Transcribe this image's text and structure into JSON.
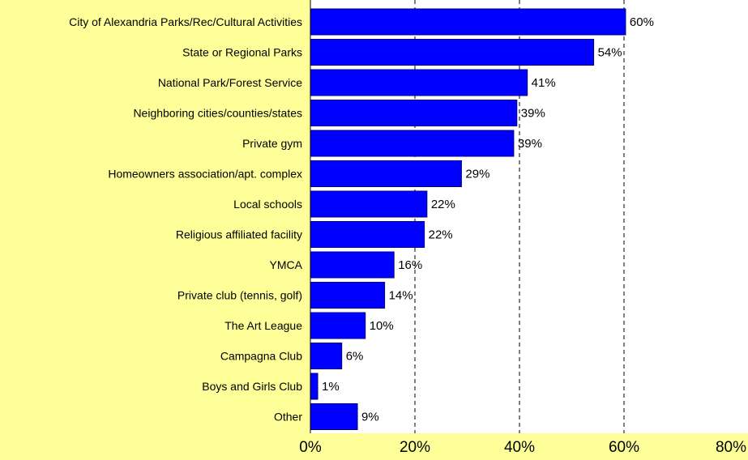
{
  "colors": {
    "page_background": "#FFFF99",
    "plot_background": "#FFFFFF",
    "bar_fill": "#0000FF",
    "bar_stroke": "#000080",
    "gridline": "#000000"
  },
  "chart_data": {
    "type": "bar",
    "orientation": "horizontal",
    "title": "",
    "xlabel": "",
    "ylabel": "",
    "xlim": [
      0,
      80
    ],
    "x_ticks": [
      0,
      20,
      40,
      60,
      80
    ],
    "x_tick_labels": [
      "0%",
      "20%",
      "40%",
      "60%",
      "80%"
    ],
    "gridlines": "vertical dashed at 20%, 40%, 60%",
    "legend": "none",
    "categories": [
      "City of Alexandria Parks/Rec/Cultural Activities",
      "State or Regional Parks",
      "National Park/Forest Service",
      "Neighboring cities/counties/states",
      "Private gym",
      "Homeowners association/apt. complex",
      "Local schools",
      "Religious affiliated facility",
      "YMCA",
      "Private club (tennis, golf)",
      "The Art League",
      "Campagna Club",
      "Boys and Girls Club",
      "Other"
    ],
    "values": [
      60.3,
      54.2,
      41.5,
      39.5,
      38.9,
      28.9,
      22.3,
      21.8,
      16.0,
      14.2,
      10.5,
      6.0,
      1.4,
      9.0
    ],
    "value_labels": [
      "60%",
      "54%",
      "41%",
      "39%",
      "39%",
      "29%",
      "22%",
      "22%",
      "16%",
      "14%",
      "10%",
      "6%",
      "1%",
      "9%"
    ]
  }
}
